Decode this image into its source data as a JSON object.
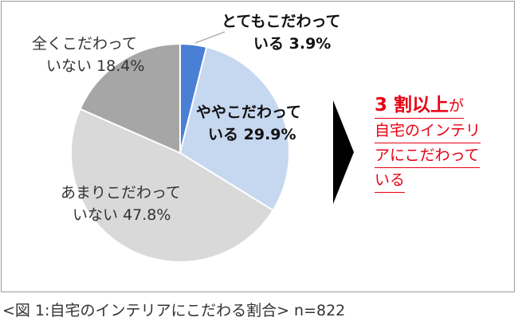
{
  "chart_data": {
    "type": "pie",
    "slices": [
      {
        "label_line1": "とてもこだわって",
        "label_line2": "いる",
        "value": 3.9,
        "value_text": "3.9%",
        "color": "#4a7fd6"
      },
      {
        "label_line1": "ややこだわって",
        "label_line2": "いる",
        "value": 29.9,
        "value_text": "29.9%",
        "color": "#c6d7f0"
      },
      {
        "label_line1": "あまりこだわって",
        "label_line2": "いない",
        "value": 47.8,
        "value_text": "47.8%",
        "color": "#d9d9d9"
      },
      {
        "label_line1": "全くこだわって",
        "label_line2": "いない",
        "value": 18.4,
        "value_text": "18.4%",
        "color": "#a6a6a6"
      }
    ]
  },
  "callout": {
    "highlight": "3 割以上",
    "particle": "が",
    "line2": "自宅のインテリ",
    "line3": "アにこだわって",
    "line4": "いる",
    "color": "#e60012"
  },
  "caption": "<図 1:自宅のインテリアにこだわる割合> n=822"
}
